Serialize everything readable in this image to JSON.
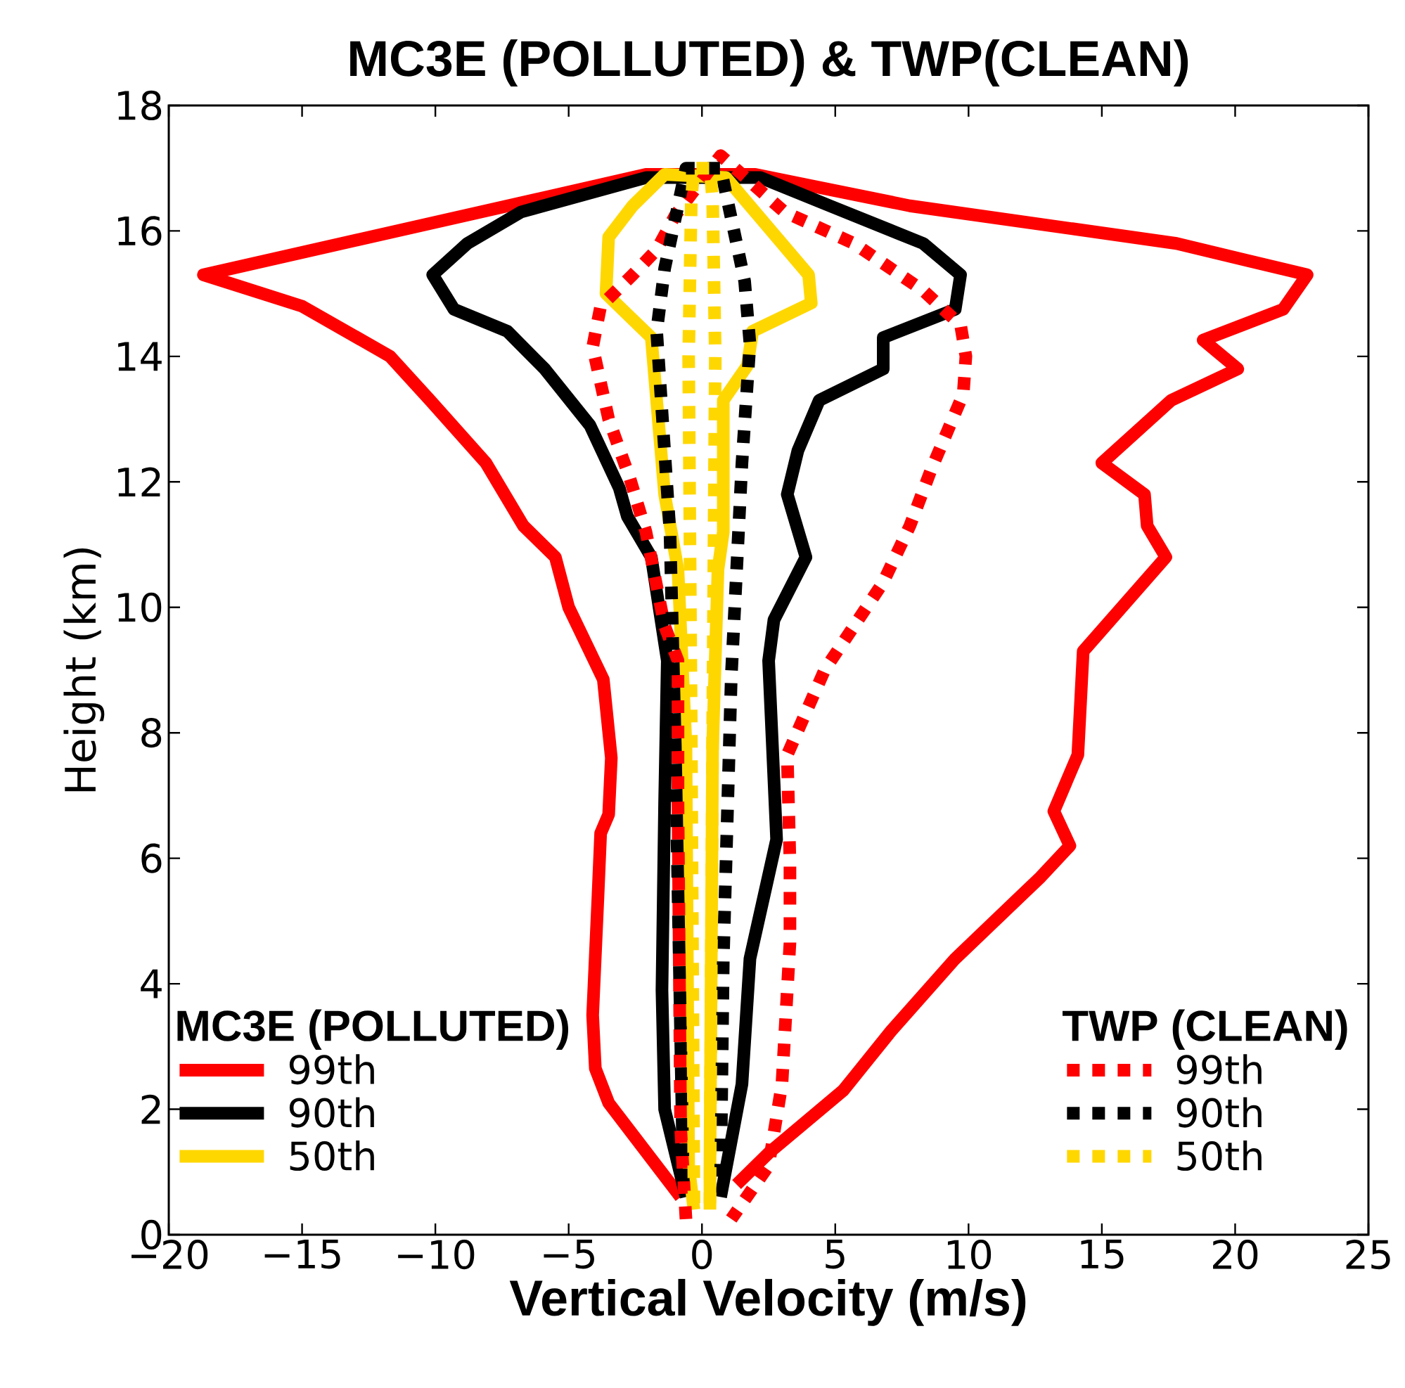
{
  "chart_data": {
    "type": "line",
    "title": "MC3E (POLLUTED) & TWP(CLEAN)",
    "xlabel": "Vertical Velocity (m/s)",
    "ylabel": "Height (km)",
    "xlim": [
      -20,
      25
    ],
    "ylim": [
      0,
      18
    ],
    "xticks": [
      {
        "value": -20,
        "label": "−20"
      },
      {
        "value": -15,
        "label": "−15"
      },
      {
        "value": -10,
        "label": "−10"
      },
      {
        "value": -5,
        "label": "−5"
      },
      0,
      5,
      10,
      15,
      20,
      25
    ],
    "yticks": [
      0,
      2,
      4,
      6,
      8,
      10,
      12,
      14,
      16,
      18
    ],
    "legend": "bottom",
    "grid": false,
    "marker": "none",
    "annotations": [
      "MC3E (POLLUTED)",
      "TWP (CLEAN)"
    ],
    "series": [
      {
        "name": "99th",
        "color": "#ff0000",
        "line_style": "solid",
        "x": [
          -0.8,
          -3.5,
          -4.0,
          -4.1,
          -3.9,
          -3.8,
          -3.5,
          -3.4,
          -3.7,
          -5.0,
          -5.5,
          -6.7,
          -8.1,
          -10.2,
          -11.7,
          -15.0,
          -18.7,
          -2.1,
          2.0,
          7.8,
          17.8,
          22.7,
          21.8,
          18.8,
          20.1,
          17.6,
          15.0,
          16.6,
          16.7,
          17.4,
          14.3,
          14.1,
          13.2,
          13.8,
          12.7,
          9.5,
          7.1,
          5.3,
          2.5,
          1.3
        ],
        "values": [
          0.6,
          2.1,
          2.65,
          3.5,
          5.4,
          6.4,
          6.7,
          7.6,
          8.85,
          10.0,
          10.8,
          11.3,
          12.3,
          13.3,
          14.0,
          14.8,
          15.3,
          16.9,
          16.9,
          16.4,
          15.8,
          15.3,
          14.75,
          14.26,
          13.8,
          13.3,
          12.3,
          11.8,
          11.3,
          10.8,
          9.3,
          7.65,
          6.75,
          6.2,
          5.7,
          4.4,
          3.25,
          2.3,
          1.3,
          0.8
        ]
      },
      {
        "name": "90th",
        "color": "#000000",
        "line_style": "solid",
        "x": [
          -0.6,
          -1.4,
          -1.5,
          -1.4,
          -1.3,
          -1.9,
          -2.8,
          -3.1,
          -4.2,
          -5.9,
          -7.3,
          -9.3,
          -10.1,
          -8.8,
          -6.8,
          -2.1,
          2.2,
          4.8,
          8.3,
          9.7,
          9.5,
          6.8,
          6.8,
          4.4,
          3.6,
          3.2,
          3.9,
          2.7,
          2.5,
          2.8,
          1.8,
          1.5,
          0.7
        ],
        "values": [
          0.6,
          2.0,
          3.9,
          6.9,
          9.15,
          10.8,
          11.45,
          11.9,
          12.9,
          13.8,
          14.4,
          14.75,
          15.3,
          15.8,
          16.3,
          16.85,
          16.85,
          16.4,
          15.8,
          15.3,
          14.75,
          14.3,
          13.8,
          13.3,
          12.5,
          11.8,
          10.8,
          9.8,
          9.15,
          6.3,
          4.4,
          2.4,
          0.6
        ]
      },
      {
        "name": "50th",
        "color": "#ffd700",
        "line_style": "solid",
        "x": [
          -0.3,
          -0.5,
          -0.6,
          -0.9,
          -1.4,
          -1.9,
          -3.6,
          -3.5,
          -2.6,
          -1.4,
          0.9,
          2.4,
          4.0,
          4.1,
          1.9,
          1.7,
          0.8,
          0.8,
          0.6,
          0.4,
          0.3,
          0.3
        ],
        "values": [
          0.4,
          1.1,
          7.8,
          10.6,
          11.8,
          14.3,
          15.0,
          15.9,
          16.4,
          16.9,
          16.85,
          16.1,
          15.3,
          14.85,
          14.4,
          13.85,
          13.3,
          11.2,
          10.6,
          7.8,
          1.1,
          0.4
        ]
      },
      {
        "name": "99th",
        "color": "#ff0000",
        "line_style": "dotted",
        "x": [
          -0.6,
          -0.8,
          -0.9,
          -0.9,
          -1.4,
          -2.1,
          -2.7,
          -3.5,
          -4.1,
          -3.8,
          -2.6,
          -1.7,
          -1.0,
          0.7,
          3.1,
          5.7,
          8.3,
          9.7,
          9.9,
          9.8,
          9.2,
          8.6,
          7.8,
          6.8,
          4.6,
          3.2,
          3.3,
          3.3,
          3.0,
          2.5,
          1.1
        ],
        "values": [
          0.25,
          1.7,
          6.9,
          9.15,
          9.7,
          11.2,
          12.05,
          13.0,
          14.15,
          14.8,
          15.3,
          15.7,
          16.25,
          17.2,
          16.3,
          15.8,
          15.05,
          14.5,
          14.0,
          13.4,
          12.8,
          12.2,
          11.3,
          10.4,
          9.0,
          7.65,
          5.95,
          4.65,
          2.4,
          1.1,
          0.25
        ]
      },
      {
        "name": "90th",
        "color": "#000000",
        "line_style": "dotted",
        "x": [
          -0.7,
          -1.0,
          -1.2,
          -1.7,
          -1.4,
          -0.9,
          -0.6,
          0.7,
          1.1,
          1.6,
          1.8,
          1.5,
          1.1,
          0.8,
          0.7
        ],
        "values": [
          0.85,
          7.8,
          11.2,
          14.4,
          15.4,
          16.4,
          17.0,
          17.0,
          16.2,
          15.2,
          14.2,
          12.3,
          8.9,
          4.4,
          0.85
        ]
      },
      {
        "name": "50th",
        "color": "#ffd700",
        "line_style": "dotted",
        "x": [
          -0.3,
          -0.4,
          -0.5,
          -0.4,
          -0.3,
          0.3,
          0.4,
          0.5,
          0.4,
          0.3
        ],
        "values": [
          0.5,
          8.0,
          14.0,
          16.5,
          17.0,
          17.0,
          16.5,
          14.0,
          8.0,
          0.5
        ]
      }
    ]
  }
}
